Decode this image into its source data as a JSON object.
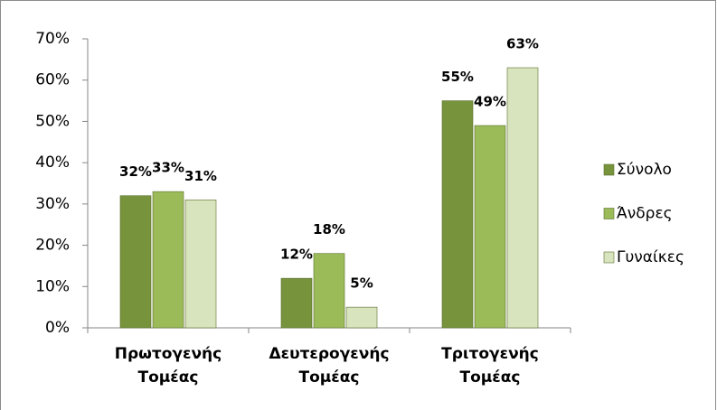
{
  "chart_data": {
    "type": "bar",
    "categories": [
      "Πρωτογενής Τομέας",
      "Δευτερογενής Τομέας",
      "Τριτογενής Τομέας"
    ],
    "series": [
      {
        "name": "Σύνολο",
        "color": "#77933c",
        "values": [
          32,
          12,
          55
        ],
        "value_labels": [
          "32%",
          "12%",
          "55%"
        ]
      },
      {
        "name": "Άνδρες",
        "color": "#9bbb59",
        "values": [
          33,
          18,
          49
        ],
        "value_labels": [
          "33%",
          "18%",
          "49%"
        ]
      },
      {
        "name": "Γυναίκες",
        "color": "#d7e4bd",
        "values": [
          31,
          5,
          63
        ],
        "value_labels": [
          "31%",
          "5%",
          "63%"
        ]
      }
    ],
    "ylim": [
      0,
      70
    ],
    "yticks": [
      {
        "value": 0,
        "label": "0%"
      },
      {
        "value": 10,
        "label": "10%"
      },
      {
        "value": 20,
        "label": "20%"
      },
      {
        "value": 30,
        "label": "30%"
      },
      {
        "value": 40,
        "label": "40%"
      },
      {
        "value": 50,
        "label": "50%"
      },
      {
        "value": 60,
        "label": "60%"
      },
      {
        "value": 70,
        "label": "70%"
      }
    ],
    "legend": "right"
  }
}
